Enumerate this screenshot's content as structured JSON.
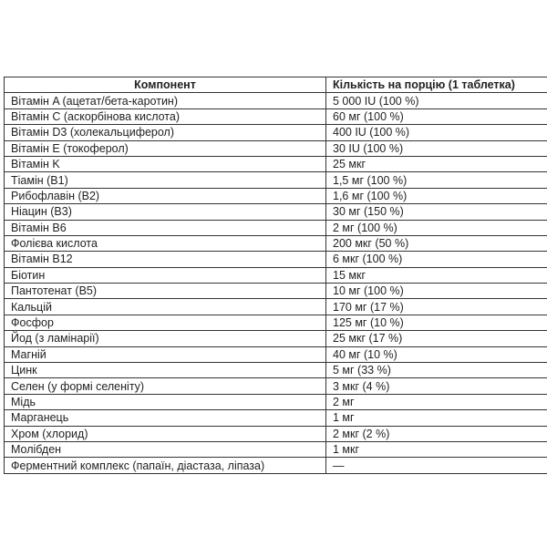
{
  "table": {
    "headers": [
      "Компонент",
      "Кількість на порцію (1 таблетка)"
    ],
    "rows": [
      [
        "Вітамін A (ацетат/бета-каротин)",
        "5 000 IU (100 %)"
      ],
      [
        "Вітамін C (аскорбінова кислота)",
        "60 мг (100 %)"
      ],
      [
        "Вітамін D3 (холекальциферол)",
        "400 IU (100 %)"
      ],
      [
        "Вітамін E (токоферол)",
        "30 IU (100 %)"
      ],
      [
        "Вітамін K",
        "25 мкг"
      ],
      [
        "Тіамін (B1)",
        "1,5 мг (100 %)"
      ],
      [
        "Рибофлавін (B2)",
        "1,6 мг (100 %)"
      ],
      [
        "Ніацин (B3)",
        "30 мг (150 %)"
      ],
      [
        "Вітамін B6",
        "2 мг (100 %)"
      ],
      [
        "Фолієва кислота",
        "200 мкг (50 %)"
      ],
      [
        "Вітамін B12",
        "6 мкг (100 %)"
      ],
      [
        "Біотин",
        "15 мкг"
      ],
      [
        "Пантотенат (B5)",
        "10 мг (100 %)"
      ],
      [
        "Кальцій",
        "170 мг (17 %)"
      ],
      [
        "Фосфор",
        "125 мг (10 %)"
      ],
      [
        "Йод (з ламінарії)",
        "25 мкг (17 %)"
      ],
      [
        "Магній",
        "40 мг (10 %)"
      ],
      [
        "Цинк",
        "5 мг (33 %)"
      ],
      [
        "Селен (у формі селеніту)",
        "3 мкг (4 %)"
      ],
      [
        "Мідь",
        "2 мг"
      ],
      [
        "Марганець",
        "1 мг"
      ],
      [
        "Хром (хлорид)",
        "2 мкг (2 %)"
      ],
      [
        "Молібден",
        "1 мкг"
      ],
      [
        "Ферментний комплекс (папаїн, діастаза, ліпаза)",
        "—"
      ]
    ]
  }
}
